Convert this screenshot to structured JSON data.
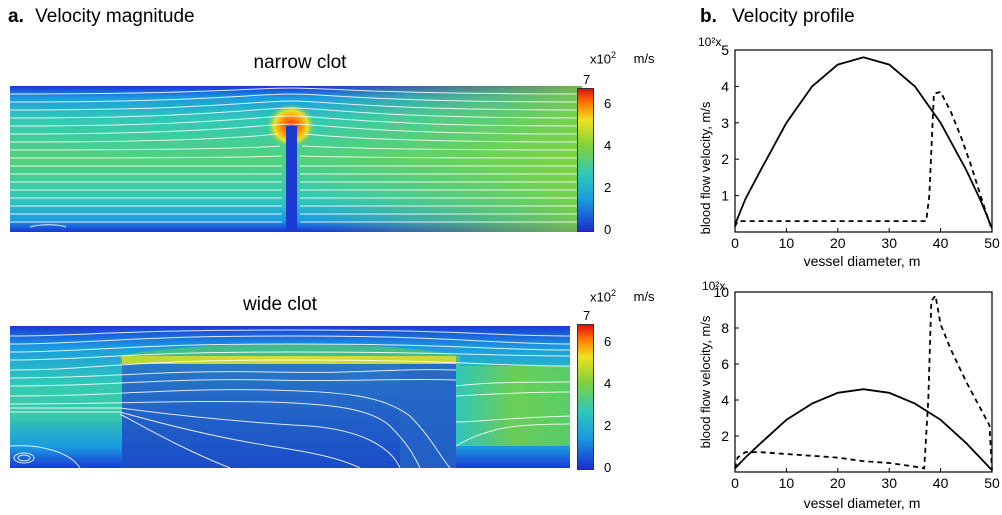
{
  "panel_a": {
    "label": "a.",
    "title": "Velocity magnitude",
    "narrow": {
      "title": "narrow clot",
      "colorbar": {
        "multiplier": "x10",
        "exponent": "2",
        "unit": "m/s",
        "ticks": [
          "7",
          "6",
          "4",
          "2",
          "0"
        ]
      }
    },
    "wide": {
      "title": "wide clot",
      "colorbar": {
        "multiplier": "x10",
        "exponent": "2",
        "unit": "m/s",
        "ticks": [
          "7",
          "6",
          "4",
          "2",
          "0"
        ]
      }
    }
  },
  "panel_b": {
    "label": "b.",
    "title": "Velocity profile"
  },
  "chart_data": [
    {
      "type": "line",
      "title": "",
      "xlabel": "vessel diameter,   m",
      "ylabel": "blood flow velocity,   m/s",
      "y_multiplier": "10²x",
      "xlim": [
        0,
        50
      ],
      "ylim": [
        0,
        5
      ],
      "x_ticks": [
        0,
        10,
        20,
        30,
        40,
        50
      ],
      "y_ticks": [
        1,
        2,
        3,
        4,
        5
      ],
      "series": [
        {
          "style": "solid",
          "x": [
            0,
            2,
            5,
            10,
            15,
            20,
            25,
            30,
            35,
            40,
            45,
            48,
            50
          ],
          "y": [
            0.2,
            0.9,
            1.7,
            3.0,
            4.0,
            4.6,
            4.8,
            4.6,
            4.0,
            3.0,
            1.7,
            0.8,
            0.1
          ]
        },
        {
          "style": "dashed",
          "x": [
            0,
            0.5,
            37.2,
            37.8,
            38.7,
            40,
            42,
            44,
            46,
            48,
            50
          ],
          "y": [
            0.15,
            0.3,
            0.3,
            1.0,
            3.8,
            3.85,
            3.3,
            2.6,
            1.8,
            0.9,
            0.05
          ]
        }
      ]
    },
    {
      "type": "line",
      "title": "",
      "xlabel": "vessel diameter,   m",
      "ylabel": "blood flow velocity,   m/s",
      "y_multiplier": "10²x",
      "xlim": [
        0,
        50
      ],
      "ylim": [
        0,
        10
      ],
      "x_ticks": [
        0,
        10,
        20,
        30,
        40,
        50
      ],
      "y_ticks": [
        2,
        4,
        6,
        8,
        10
      ],
      "series": [
        {
          "style": "solid",
          "x": [
            0,
            2,
            5,
            10,
            15,
            20,
            25,
            30,
            35,
            40,
            45,
            48,
            50
          ],
          "y": [
            0.2,
            0.8,
            1.6,
            2.9,
            3.8,
            4.4,
            4.6,
            4.4,
            3.8,
            2.9,
            1.6,
            0.7,
            0.1
          ]
        },
        {
          "style": "dashed",
          "x": [
            0,
            0.5,
            2,
            5,
            10,
            15,
            20,
            25,
            30,
            35,
            36.8,
            37.6,
            38.2,
            39,
            40,
            42,
            45,
            48,
            49.5,
            50
          ],
          "y": [
            0.2,
            0.8,
            1.1,
            1.1,
            1.0,
            0.9,
            0.8,
            0.6,
            0.5,
            0.3,
            0.2,
            4.0,
            9.5,
            9.8,
            8.2,
            6.8,
            5.0,
            3.4,
            2.6,
            0.1
          ]
        }
      ]
    }
  ]
}
